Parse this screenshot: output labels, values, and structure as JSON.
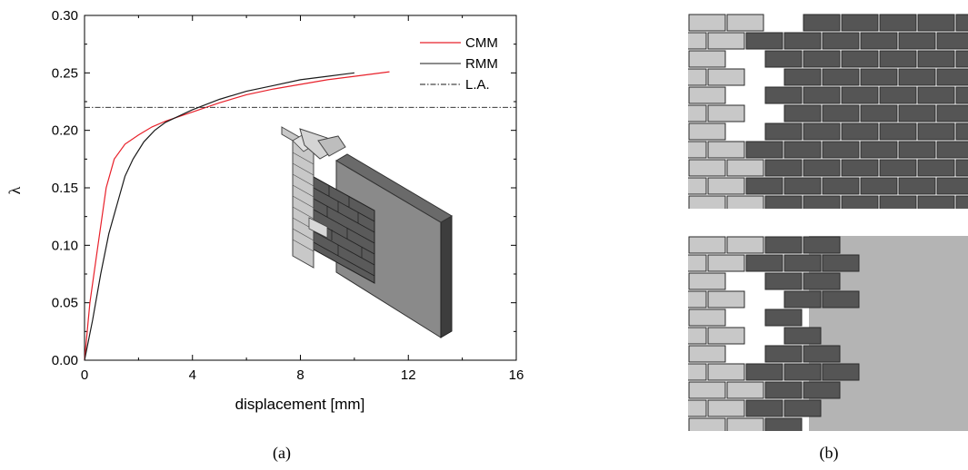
{
  "panels": {
    "a_label": "(a)",
    "b_label": "(b)"
  },
  "chart_data": {
    "type": "line",
    "title": "",
    "xlabel": "displacement [mm]",
    "ylabel": "λ",
    "xlim": [
      0,
      16
    ],
    "ylim": [
      0,
      0.3
    ],
    "xticks": [
      0,
      4,
      8,
      12,
      16
    ],
    "xtick_labels": [
      "0",
      "4",
      "8",
      "12",
      "16"
    ],
    "yticks": [
      0,
      0.05,
      0.1,
      0.15,
      0.2,
      0.25,
      0.3
    ],
    "ytick_labels": [
      "0.00",
      "0.05",
      "0.10",
      "0.15",
      "0.20",
      "0.25",
      "0.30"
    ],
    "grid": false,
    "legend_position": "top-right",
    "series": [
      {
        "name": "CMM",
        "color": "#e8202a",
        "dash": "solid",
        "x": [
          0,
          0.2,
          0.5,
          0.8,
          1.1,
          1.5,
          2.0,
          2.5,
          3.0,
          4.0,
          5.0,
          6.0,
          7.0,
          8.0,
          9.0,
          10.0,
          11.3
        ],
        "y": [
          0,
          0.05,
          0.1,
          0.15,
          0.175,
          0.188,
          0.196,
          0.203,
          0.208,
          0.216,
          0.224,
          0.231,
          0.236,
          0.24,
          0.244,
          0.247,
          0.251
        ]
      },
      {
        "name": "RMM",
        "color": "#1a1a1a",
        "dash": "solid",
        "x": [
          0,
          0.3,
          0.6,
          0.9,
          1.2,
          1.5,
          1.8,
          2.2,
          2.6,
          3.0,
          4.0,
          5.0,
          6.0,
          7.0,
          8.0,
          9.0,
          10.0
        ],
        "y": [
          0,
          0.035,
          0.075,
          0.11,
          0.135,
          0.16,
          0.175,
          0.19,
          0.2,
          0.207,
          0.218,
          0.227,
          0.234,
          0.239,
          0.244,
          0.247,
          0.25
        ]
      },
      {
        "name": "L.A.",
        "color": "#1a1a1a",
        "dash": "dashdot",
        "x": [
          0,
          16
        ],
        "y": [
          0.22,
          0.22
        ]
      }
    ]
  },
  "illustrations": {
    "wall_3d_inset": "masonry-wall-3d-icon",
    "wall_front_top": "masonry-wall-mesh-icon",
    "wall_front_bottom": "masonry-wall-hybrid-mesh-icon",
    "colors": {
      "dark_brick": "#555555",
      "light_brick": "#c8c8c8",
      "continuum": "#b4b4b4",
      "mortar": "#2a2a2a"
    }
  }
}
